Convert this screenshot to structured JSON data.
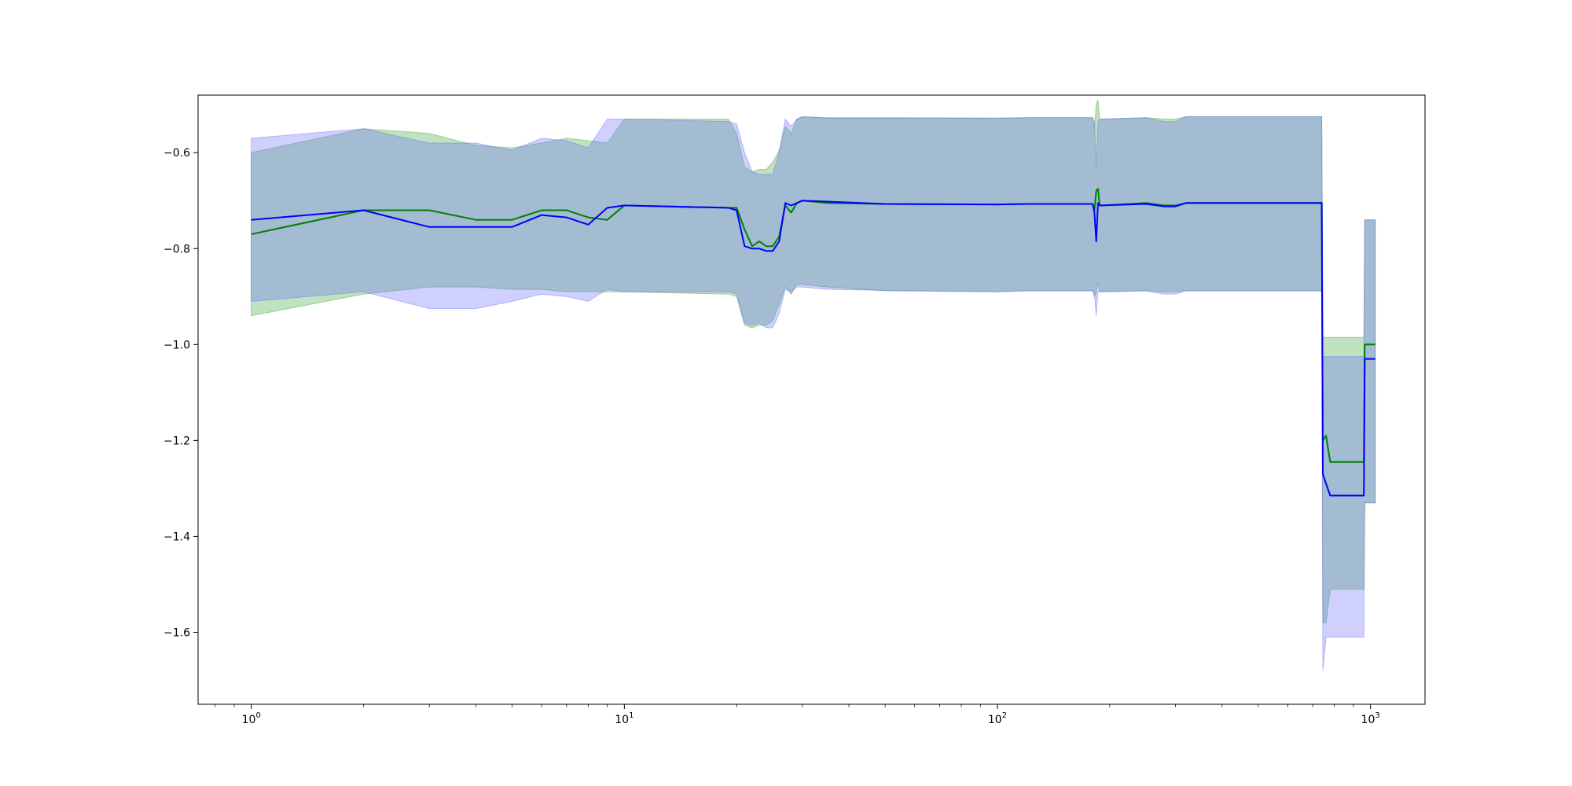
{
  "chart_data": {
    "type": "line",
    "title": "",
    "xlabel": "",
    "ylabel": "",
    "x_scale": "log",
    "xlim": [
      0.72,
      1400
    ],
    "ylim": [
      -1.75,
      -0.48
    ],
    "grid": false,
    "legend": "none",
    "x_ticks": [
      {
        "value": 1,
        "base": "10",
        "exp": "0"
      },
      {
        "value": 10,
        "base": "10",
        "exp": "1"
      },
      {
        "value": 100,
        "base": "10",
        "exp": "2"
      },
      {
        "value": 1000,
        "base": "10",
        "exp": "3"
      }
    ],
    "y_ticks": [
      {
        "value": -0.6,
        "label": "−0.6"
      },
      {
        "value": -0.8,
        "label": "−0.8"
      },
      {
        "value": -1.0,
        "label": "−1.0"
      },
      {
        "value": -1.2,
        "label": "−1.2"
      },
      {
        "value": -1.4,
        "label": "−1.4"
      },
      {
        "value": -1.6,
        "label": "−1.6"
      }
    ],
    "series": [
      {
        "color": "#008000",
        "band_color": "#2ca02c",
        "x": [
          1,
          2,
          3,
          4,
          5,
          6,
          7,
          8,
          9,
          10,
          19,
          20,
          21,
          22,
          23,
          24,
          25,
          26,
          27,
          28,
          29,
          30,
          35,
          50,
          100,
          120,
          180,
          182,
          184,
          186,
          188,
          190,
          250,
          280,
          300,
          320,
          500,
          740,
          745,
          760,
          780,
          960,
          965,
          1000,
          1030
        ],
        "y": [
          -0.77,
          -0.72,
          -0.72,
          -0.74,
          -0.74,
          -0.72,
          -0.72,
          -0.735,
          -0.74,
          -0.71,
          -0.715,
          -0.715,
          -0.76,
          -0.795,
          -0.785,
          -0.795,
          -0.795,
          -0.775,
          -0.71,
          -0.725,
          -0.705,
          -0.7,
          -0.705,
          -0.707,
          -0.708,
          -0.707,
          -0.707,
          -0.72,
          -0.68,
          -0.675,
          -0.71,
          -0.71,
          -0.705,
          -0.71,
          -0.71,
          -0.705,
          -0.705,
          -0.705,
          -1.2,
          -1.19,
          -1.245,
          -1.245,
          -1.0,
          -1.0,
          -1.0
        ],
        "lower": [
          -0.94,
          -0.895,
          -0.88,
          -0.88,
          -0.885,
          -0.885,
          -0.89,
          -0.89,
          -0.89,
          -0.89,
          -0.895,
          -0.9,
          -0.96,
          -0.965,
          -0.96,
          -0.96,
          -0.95,
          -0.915,
          -0.88,
          -0.895,
          -0.875,
          -0.875,
          -0.88,
          -0.888,
          -0.89,
          -0.888,
          -0.888,
          -0.9,
          -0.89,
          -0.87,
          -0.89,
          -0.89,
          -0.888,
          -0.89,
          -0.89,
          -0.888,
          -0.888,
          -0.888,
          -1.58,
          -1.58,
          -1.51,
          -1.51,
          -1.33,
          -1.33,
          -1.33
        ],
        "upper": [
          -0.6,
          -0.55,
          -0.56,
          -0.585,
          -0.59,
          -0.58,
          -0.57,
          -0.575,
          -0.58,
          -0.53,
          -0.53,
          -0.56,
          -0.63,
          -0.64,
          -0.635,
          -0.635,
          -0.62,
          -0.595,
          -0.545,
          -0.56,
          -0.53,
          -0.525,
          -0.527,
          -0.527,
          -0.528,
          -0.527,
          -0.527,
          -0.55,
          -0.5,
          -0.49,
          -0.53,
          -0.53,
          -0.527,
          -0.53,
          -0.53,
          -0.525,
          -0.525,
          -0.525,
          -0.985,
          -0.985,
          -0.985,
          -0.985,
          -0.74,
          -0.74,
          -0.74
        ]
      },
      {
        "color": "#0000ff",
        "band_color": "#6464ff",
        "x": [
          1,
          2,
          3,
          4,
          5,
          6,
          7,
          8,
          9,
          10,
          19,
          20,
          21,
          22,
          23,
          24,
          25,
          26,
          27,
          28,
          29,
          30,
          35,
          50,
          100,
          120,
          180,
          182,
          184,
          186,
          188,
          190,
          250,
          280,
          300,
          320,
          500,
          740,
          745,
          760,
          780,
          960,
          965,
          1000,
          1030
        ],
        "y": [
          -0.74,
          -0.72,
          -0.755,
          -0.755,
          -0.755,
          -0.73,
          -0.735,
          -0.75,
          -0.715,
          -0.71,
          -0.715,
          -0.72,
          -0.795,
          -0.8,
          -0.8,
          -0.805,
          -0.805,
          -0.785,
          -0.705,
          -0.71,
          -0.705,
          -0.7,
          -0.702,
          -0.707,
          -0.708,
          -0.707,
          -0.707,
          -0.725,
          -0.785,
          -0.705,
          -0.71,
          -0.71,
          -0.707,
          -0.712,
          -0.712,
          -0.705,
          -0.705,
          -0.705,
          -1.27,
          -1.29,
          -1.315,
          -1.315,
          -1.03,
          -1.03,
          -1.03
        ],
        "lower": [
          -0.91,
          -0.89,
          -0.925,
          -0.925,
          -0.91,
          -0.895,
          -0.9,
          -0.91,
          -0.885,
          -0.89,
          -0.89,
          -0.895,
          -0.955,
          -0.96,
          -0.955,
          -0.965,
          -0.965,
          -0.935,
          -0.885,
          -0.89,
          -0.88,
          -0.88,
          -0.885,
          -0.887,
          -0.89,
          -0.888,
          -0.888,
          -0.895,
          -0.94,
          -0.89,
          -0.89,
          -0.89,
          -0.888,
          -0.895,
          -0.895,
          -0.888,
          -0.888,
          -0.888,
          -1.68,
          -1.61,
          -1.61,
          -1.61,
          -1.33,
          -1.33,
          -1.33
        ],
        "upper": [
          -0.57,
          -0.55,
          -0.58,
          -0.58,
          -0.595,
          -0.57,
          -0.575,
          -0.59,
          -0.53,
          -0.53,
          -0.535,
          -0.54,
          -0.6,
          -0.64,
          -0.645,
          -0.645,
          -0.645,
          -0.6,
          -0.53,
          -0.545,
          -0.53,
          -0.525,
          -0.528,
          -0.528,
          -0.528,
          -0.527,
          -0.527,
          -0.535,
          -0.63,
          -0.535,
          -0.53,
          -0.53,
          -0.527,
          -0.535,
          -0.535,
          -0.525,
          -0.525,
          -0.525,
          -1.025,
          -1.025,
          -1.025,
          -1.025,
          -0.74,
          -0.74,
          -0.74
        ]
      }
    ]
  }
}
